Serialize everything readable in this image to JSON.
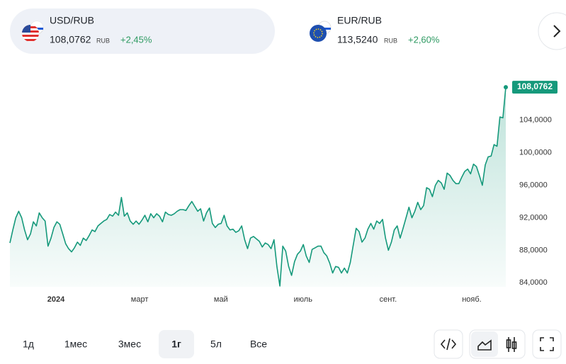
{
  "tickers": [
    {
      "pair": "USD/RUB",
      "price": "108,0762",
      "currency": "RUB",
      "change": "+2,45%"
    },
    {
      "pair": "EUR/RUB",
      "price": "113,5240",
      "currency": "RUB",
      "change": "+2,60%"
    }
  ],
  "periods": [
    "1д",
    "1мес",
    "3мес",
    "1г",
    "5л",
    "Все"
  ],
  "active_period": 3,
  "chart_data": {
    "type": "area",
    "color": "#15997b",
    "values": [
      88.9,
      90.5,
      92,
      92.8,
      92,
      90.5,
      89.3,
      90,
      91.5,
      91,
      92.6,
      92,
      91.6,
      88.5,
      89.5,
      90.8,
      91.5,
      91.2,
      90,
      88.8,
      88.2,
      87.8,
      88.3,
      89,
      88.6,
      89.5,
      89.2,
      89.8,
      90.5,
      90.3,
      91,
      91.3,
      91.6,
      91.8,
      92.4,
      92.2,
      92.7,
      92.3,
      94.5,
      92.2,
      92.6,
      91.6,
      91.2,
      91.6,
      91.2,
      91.7,
      92.3,
      91.5,
      92.5,
      92,
      92.5,
      92.2,
      91.5,
      92.7,
      92.4,
      92.3,
      92.5,
      92.8,
      93,
      93,
      92.9,
      93.5,
      94,
      93.4,
      92.8,
      93.1,
      91.6,
      92.6,
      93.2,
      91.3,
      90.8,
      91.2,
      91.3,
      92.3,
      91,
      90.5,
      90.6,
      90.2,
      90.4,
      91,
      89.3,
      88.2,
      89.5,
      89.7,
      89.4,
      89.1,
      88.4,
      88.9,
      88.7,
      88.2,
      89.3,
      86,
      83.6,
      88.5,
      87.9,
      86,
      84.9,
      86.6,
      87.5,
      87.9,
      88.7,
      87.3,
      86.5,
      88.1,
      88.3,
      88.5,
      88.5,
      87.7,
      87.3,
      86.4,
      85.2,
      86,
      85.9,
      85.2,
      85.8,
      85.2,
      86.5,
      88.6,
      90.7,
      90.3,
      89,
      89.5,
      90.6,
      91.3,
      90.6,
      91.6,
      91.3,
      91.8,
      89.5,
      88,
      89,
      90.5,
      91,
      89.5,
      90.7,
      92,
      93.3,
      92,
      92.8,
      93.9,
      93,
      93.5,
      95.7,
      95.5,
      94.6,
      96,
      96.6,
      96.3,
      95.5,
      97.5,
      97.2,
      96.6,
      96.2,
      96.2,
      97,
      97.7,
      98,
      97.4,
      98.6,
      98.3,
      97.2,
      96,
      98.5,
      99.5,
      99.6,
      101,
      100.8,
      104.4,
      104.3,
      108.0762
    ],
    "xlim": [
      0,
      169
    ],
    "xticks": [
      {
        "value": 15.7,
        "label": "2024"
      },
      {
        "value": 44.2,
        "label": "март"
      },
      {
        "value": 71.9,
        "label": "май"
      },
      {
        "value": 99.9,
        "label": "июль"
      },
      {
        "value": 128.9,
        "label": "сент."
      },
      {
        "value": 157.4,
        "label": "нояб."
      }
    ],
    "ylim": [
      83.5,
      110
    ],
    "yticks": [
      {
        "value": 84,
        "label": "84,0000"
      },
      {
        "value": 88,
        "label": "88,0000"
      },
      {
        "value": 92,
        "label": "92,0000"
      },
      {
        "value": 96,
        "label": "96,0000"
      },
      {
        "value": 100,
        "label": "100,0000"
      },
      {
        "value": 104,
        "label": "104,0000"
      }
    ],
    "current": {
      "value": 108.0762,
      "label": "108,0762"
    }
  }
}
